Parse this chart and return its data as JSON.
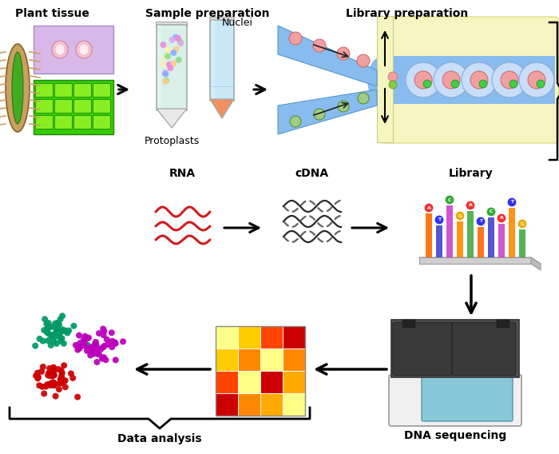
{
  "bg_color": "#ffffff",
  "labels": {
    "plant_tissue": "Plant tissue",
    "sample_prep": "Sample preparation",
    "library_prep": "Library preparation",
    "rna": "RNA",
    "cdna": "cDNA",
    "library": "Library",
    "data_analysis": "Data analysis",
    "dna_sequencing": "DNA sequencing",
    "nuclei": "Nuclei",
    "protoplasts": "Protoplasts"
  },
  "cluster_colors": [
    "#cc0000",
    "#bb00bb",
    "#009966"
  ],
  "heatmap": [
    [
      "#ffff88",
      "#ffcc00",
      "#ff4400",
      "#cc0000"
    ],
    [
      "#ffcc00",
      "#ff8800",
      "#ffff88",
      "#ff8800"
    ],
    [
      "#ff4400",
      "#ffff88",
      "#cc0000",
      "#ffaa00"
    ],
    [
      "#cc0000",
      "#ff8800",
      "#ffaa00",
      "#ffff88"
    ]
  ],
  "font_label": 10,
  "font_small": 9,
  "font_bold": 10
}
